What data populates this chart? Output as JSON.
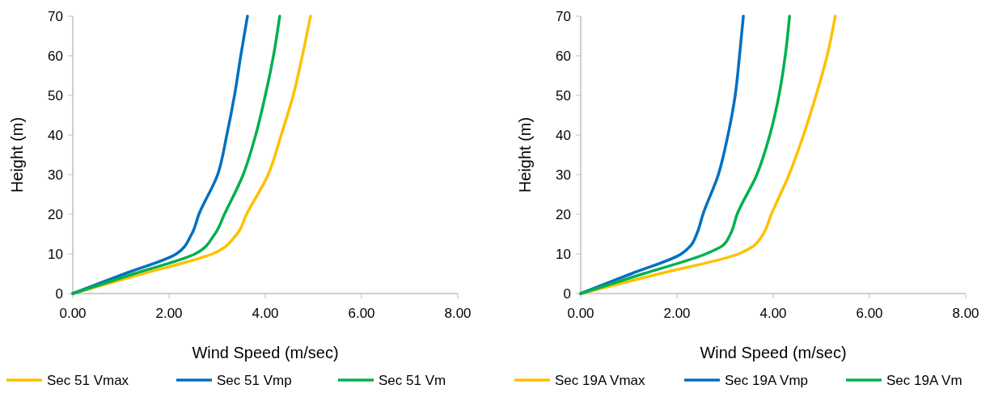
{
  "chart_data": [
    {
      "type": "line",
      "xlabel": "Wind Speed (m/sec)",
      "ylabel": "Height (m)",
      "xlim": [
        0,
        8
      ],
      "ylim": [
        0,
        70
      ],
      "xticks": [
        {
          "value": 0,
          "label": "0.00"
        },
        {
          "value": 2,
          "label": "2.00"
        },
        {
          "value": 4,
          "label": "4.00"
        },
        {
          "value": 6,
          "label": "6.00"
        },
        {
          "value": 8,
          "label": "8.00"
        }
      ],
      "yticks": [
        0,
        10,
        20,
        30,
        40,
        50,
        60,
        70
      ],
      "grid": false,
      "legend": "bottom",
      "marker": "none",
      "line_style": "solid",
      "series": [
        {
          "name": "Sec 51 Vmax",
          "color": "#ffc000",
          "x": [
            0,
            1.45,
            2.9,
            3.41,
            3.61,
            4.06,
            4.33,
            4.58,
            4.77,
            4.94
          ],
          "values": [
            0,
            5,
            10,
            15,
            20,
            30,
            40,
            50,
            60,
            70
          ]
        },
        {
          "name": "Sec 51 Vmp",
          "color": "#0070c0",
          "x": [
            0,
            1.08,
            2.15,
            2.47,
            2.62,
            3.01,
            3.2,
            3.36,
            3.49,
            3.63
          ],
          "values": [
            0,
            5,
            10,
            15,
            20,
            30,
            40,
            50,
            60,
            70
          ]
        },
        {
          "name": "Sec 51 Vm",
          "color": "#00b050",
          "x": [
            0,
            1.27,
            2.54,
            2.95,
            3.15,
            3.54,
            3.8,
            4.0,
            4.17,
            4.3
          ],
          "values": [
            0,
            5,
            10,
            15,
            20,
            30,
            40,
            50,
            60,
            70
          ]
        }
      ]
    },
    {
      "type": "line",
      "xlabel": "Wind Speed (m/sec)",
      "ylabel": "Height (m)",
      "xlim": [
        0,
        8
      ],
      "ylim": [
        0,
        70
      ],
      "xticks": [
        {
          "value": 0,
          "label": "0.00"
        },
        {
          "value": 2,
          "label": "2.00"
        },
        {
          "value": 4,
          "label": "4.00"
        },
        {
          "value": 6,
          "label": "6.00"
        },
        {
          "value": 8,
          "label": "8.00"
        }
      ],
      "yticks": [
        0,
        10,
        20,
        30,
        40,
        50,
        60,
        70
      ],
      "grid": false,
      "legend": "bottom",
      "marker": "none",
      "line_style": "solid",
      "series": [
        {
          "name": "Sec 19A Vmax",
          "color": "#ffc000",
          "x": [
            0,
            1.64,
            3.28,
            3.59,
            3.79,
            3.96,
            4.33,
            4.63,
            4.89,
            5.12,
            5.29
          ],
          "values": [
            0,
            5,
            10,
            12,
            15,
            20,
            30,
            40,
            50,
            60,
            70
          ]
        },
        {
          "name": "Sec 19A Vmp",
          "color": "#0070c0",
          "x": [
            0,
            1.05,
            2.09,
            2.28,
            2.41,
            2.54,
            2.86,
            3.06,
            3.21,
            3.3,
            3.38
          ],
          "values": [
            0,
            5,
            10,
            12,
            15,
            20,
            30,
            40,
            50,
            60,
            70
          ]
        },
        {
          "name": "Sec 19A Vm",
          "color": "#00b050",
          "x": [
            0,
            1.3,
            2.6,
            2.94,
            3.11,
            3.25,
            3.66,
            3.93,
            4.12,
            4.25,
            4.34
          ],
          "values": [
            0,
            5,
            10,
            12,
            15,
            20,
            30,
            40,
            50,
            60,
            70
          ]
        }
      ]
    }
  ]
}
